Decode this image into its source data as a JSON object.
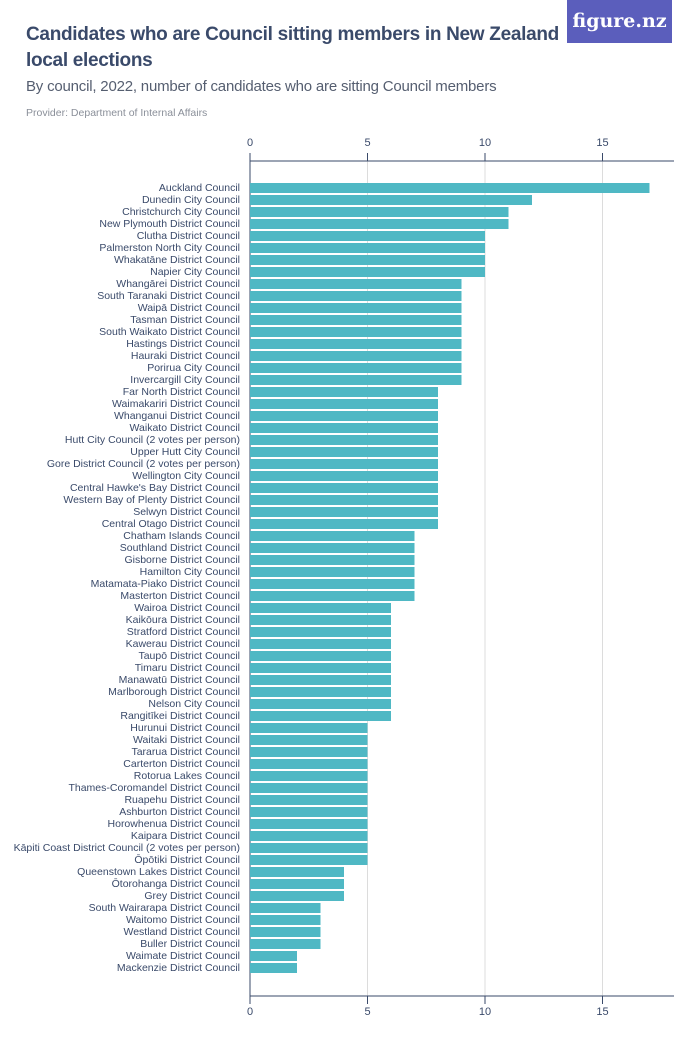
{
  "header": {
    "title": "Candidates who are Council sitting members in New Zealand local elections",
    "subtitle": "By council, 2022, number of candidates who are sitting Council members",
    "provider": "Provider: Department of Internal Affairs",
    "logo": "figure.nz"
  },
  "colors": {
    "bar": "#4fb8c4",
    "axis": "#3a4a6a",
    "grid": "#dcdcdc"
  },
  "chart_data": {
    "type": "bar",
    "orientation": "horizontal",
    "title": "Candidates who are Council sitting members in New Zealand local elections",
    "xlim": [
      0,
      18
    ],
    "xticks": [
      0,
      5,
      10,
      15
    ],
    "xlabel": "",
    "ylabel": "",
    "categories": [
      "Auckland Council",
      "Dunedin City Council",
      "Christchurch City Council",
      "New Plymouth District Council",
      "Clutha District Council",
      "Palmerston North City Council",
      "Whakatāne District Council",
      "Napier City Council",
      "Whangārei District Council",
      "South Taranaki District Council",
      "Waipā District Council",
      "Tasman District Council",
      "South Waikato District Council",
      "Hastings District Council",
      "Hauraki District Council",
      "Porirua City Council",
      "Invercargill City Council",
      "Far North District Council",
      "Waimakariri District Council",
      "Whanganui District Council",
      "Waikato District Council",
      "Hutt City Council (2 votes per person)",
      "Upper Hutt City Council",
      "Gore District Council (2 votes per person)",
      "Wellington City Council",
      "Central Hawke's Bay District Council",
      "Western Bay of Plenty District Council",
      "Selwyn District Council",
      "Central Otago District Council",
      "Chatham Islands Council",
      "Southland District Council",
      "Gisborne District Council",
      "Hamilton City Council",
      "Matamata-Piako District Council",
      "Masterton District Council",
      "Wairoa District Council",
      "Kaikōura District Council",
      "Stratford District Council",
      "Kawerau District Council",
      "Taupō District Council",
      "Timaru District Council",
      "Manawatū District Council",
      "Marlborough District Council",
      "Nelson City Council",
      "Rangitīkei District Council",
      "Hurunui District Council",
      "Waitaki District Council",
      "Tararua District Council",
      "Carterton District Council",
      "Rotorua Lakes Council",
      "Thames-Coromandel District Council",
      "Ruapehu District Council",
      "Ashburton District Council",
      "Horowhenua District Council",
      "Kaipara District Council",
      "Kāpiti Coast District Council (2 votes per person)",
      "Ōpōtiki District Council",
      "Queenstown Lakes District Council",
      "Ōtorohanga District Council",
      "Grey District Council",
      "South Wairarapa District Council",
      "Waitomo District Council",
      "Westland District Council",
      "Buller District Council",
      "Waimate District Council",
      "Mackenzie District Council"
    ],
    "values": [
      17,
      12,
      11,
      11,
      10,
      10,
      10,
      10,
      9,
      9,
      9,
      9,
      9,
      9,
      9,
      9,
      9,
      8,
      8,
      8,
      8,
      8,
      8,
      8,
      8,
      8,
      8,
      8,
      8,
      7,
      7,
      7,
      7,
      7,
      7,
      6,
      6,
      6,
      6,
      6,
      6,
      6,
      6,
      6,
      6,
      5,
      5,
      5,
      5,
      5,
      5,
      5,
      5,
      5,
      5,
      5,
      5,
      4,
      4,
      4,
      3,
      3,
      3,
      3,
      2,
      2
    ]
  }
}
